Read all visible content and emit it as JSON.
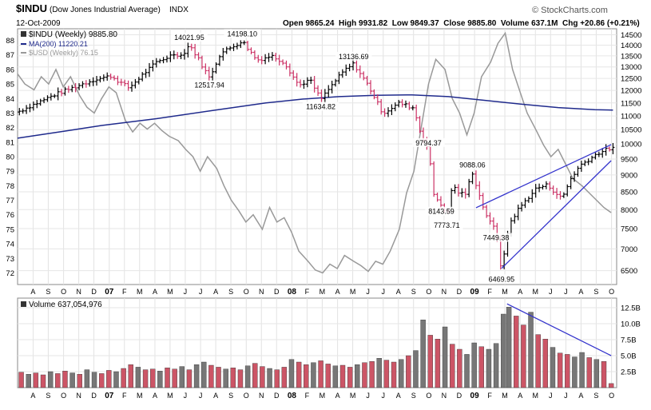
{
  "header": {
    "symbol": "$INDU",
    "name": "(Dow Jones Industrial Average)",
    "exchange": "INDX",
    "date": "12-Oct-2009",
    "ohlc": "Open 9865.24  High 9931.82  Low 9849.37  Close 9885.80  Volume 637.1M  Chg +20.86 (+0.21%)",
    "brand": "© StockCharts.com",
    "up_arrow": "▲"
  },
  "legend": {
    "price": "$INDU (Weekly) 9885.80",
    "ma": "MA(200) 11220.21",
    "usd": "$USD (Weekly) 76.15",
    "volume": "Volume 637,054,976"
  },
  "chart_data": {
    "type": "line",
    "colors": {
      "up": "#000000",
      "down": "#cc3366",
      "ma": "#1f2a8c",
      "usd": "#999999",
      "trend": "#3333cc",
      "vol_up": "#777777",
      "vol_down": "#cc5566"
    },
    "x_axis": {
      "range": [
        2006.54,
        2009.82
      ],
      "ticks": [
        {
          "label": "A",
          "x": 2006.625
        },
        {
          "label": "S",
          "x": 2006.708
        },
        {
          "label": "O",
          "x": 2006.792
        },
        {
          "label": "N",
          "x": 2006.875
        },
        {
          "label": "D",
          "x": 2006.958
        },
        {
          "label": "07",
          "x": 2007.042
        },
        {
          "label": "F",
          "x": 2007.125
        },
        {
          "label": "M",
          "x": 2007.208
        },
        {
          "label": "A",
          "x": 2007.292
        },
        {
          "label": "M",
          "x": 2007.375
        },
        {
          "label": "J",
          "x": 2007.458
        },
        {
          "label": "J",
          "x": 2007.542
        },
        {
          "label": "A",
          "x": 2007.625
        },
        {
          "label": "S",
          "x": 2007.708
        },
        {
          "label": "O",
          "x": 2007.792
        },
        {
          "label": "N",
          "x": 2007.875
        },
        {
          "label": "D",
          "x": 2007.958
        },
        {
          "label": "08",
          "x": 2008.042
        },
        {
          "label": "F",
          "x": 2008.125
        },
        {
          "label": "M",
          "x": 2008.208
        },
        {
          "label": "A",
          "x": 2008.292
        },
        {
          "label": "M",
          "x": 2008.375
        },
        {
          "label": "J",
          "x": 2008.458
        },
        {
          "label": "J",
          "x": 2008.542
        },
        {
          "label": "A",
          "x": 2008.625
        },
        {
          "label": "S",
          "x": 2008.708
        },
        {
          "label": "O",
          "x": 2008.792
        },
        {
          "label": "N",
          "x": 2008.875
        },
        {
          "label": "D",
          "x": 2008.958
        },
        {
          "label": "09",
          "x": 2009.042
        },
        {
          "label": "F",
          "x": 2009.125
        },
        {
          "label": "M",
          "x": 2009.208
        },
        {
          "label": "A",
          "x": 2009.292
        },
        {
          "label": "M",
          "x": 2009.375
        },
        {
          "label": "J",
          "x": 2009.458
        },
        {
          "label": "J",
          "x": 2009.542
        },
        {
          "label": "A",
          "x": 2009.625
        },
        {
          "label": "S",
          "x": 2009.708
        },
        {
          "label": "O",
          "x": 2009.792
        }
      ]
    },
    "price_axis": {
      "ticks": [
        {
          "label": "14500",
          "v": 14500
        },
        {
          "label": "14000",
          "v": 14000
        },
        {
          "label": "13500",
          "v": 13500
        },
        {
          "label": "13000",
          "v": 13000
        },
        {
          "label": "12500",
          "v": 12500
        },
        {
          "label": "12000",
          "v": 12000
        },
        {
          "label": "11500",
          "v": 11500
        },
        {
          "label": "11000",
          "v": 11000
        },
        {
          "label": "10500",
          "v": 10500
        },
        {
          "label": "10000",
          "v": 10000
        },
        {
          "label": "9500",
          "v": 9500
        },
        {
          "label": "9000",
          "v": 9000
        },
        {
          "label": "8500",
          "v": 8500
        },
        {
          "label": "8000",
          "v": 8000
        },
        {
          "label": "7500",
          "v": 7500
        },
        {
          "label": "7000",
          "v": 7000
        },
        {
          "label": "6500",
          "v": 6500
        }
      ]
    },
    "usd_axis": {
      "ticks": [
        {
          "label": "88",
          "v": 88
        },
        {
          "label": "87",
          "v": 87
        },
        {
          "label": "86",
          "v": 86
        },
        {
          "label": "85",
          "v": 85
        },
        {
          "label": "84",
          "v": 84
        },
        {
          "label": "83",
          "v": 83
        },
        {
          "label": "82",
          "v": 82
        },
        {
          "label": "81",
          "v": 81
        },
        {
          "label": "80",
          "v": 80
        },
        {
          "label": "79",
          "v": 79
        },
        {
          "label": "78",
          "v": 78
        },
        {
          "label": "77",
          "v": 77
        },
        {
          "label": "76",
          "v": 76
        },
        {
          "label": "75",
          "v": 75
        },
        {
          "label": "74",
          "v": 74
        },
        {
          "label": "73",
          "v": 73
        },
        {
          "label": "72",
          "v": 72
        }
      ]
    },
    "volume_axis": {
      "ticks": [
        {
          "label": "12.5B",
          "v": 12.5
        },
        {
          "label": "10.0B",
          "v": 10.0
        },
        {
          "label": "7.5B",
          "v": 7.5
        },
        {
          "label": "5.0B",
          "v": 5.0
        },
        {
          "label": "2.5B",
          "v": 2.5
        }
      ]
    },
    "price_keypoints": [
      [
        2006.54,
        11150
      ],
      [
        2006.75,
        11850
      ],
      [
        2006.96,
        12450
      ],
      [
        2007.05,
        12600
      ],
      [
        2007.15,
        12100
      ],
      [
        2007.23,
        12700
      ],
      [
        2007.3,
        13200
      ],
      [
        2007.4,
        13600
      ],
      [
        2007.44,
        13500
      ],
      [
        2007.48,
        14021.95
      ],
      [
        2007.52,
        13500
      ],
      [
        2007.59,
        12517.94
      ],
      [
        2007.65,
        13600
      ],
      [
        2007.77,
        14198.1
      ],
      [
        2007.85,
        13300
      ],
      [
        2007.93,
        13500
      ],
      [
        2008.0,
        13200
      ],
      [
        2008.08,
        12200
      ],
      [
        2008.14,
        12450
      ],
      [
        2008.2,
        11634.82
      ],
      [
        2008.28,
        12400
      ],
      [
        2008.33,
        12850
      ],
      [
        2008.38,
        13136.69
      ],
      [
        2008.46,
        12200
      ],
      [
        2008.54,
        11100
      ],
      [
        2008.63,
        11500
      ],
      [
        2008.71,
        11300
      ],
      [
        2008.74,
        10500
      ],
      [
        2008.79,
        9794.37
      ],
      [
        2008.82,
        8400
      ],
      [
        2008.86,
        8143.59
      ],
      [
        2008.89,
        7773.71
      ],
      [
        2008.92,
        8700
      ],
      [
        2008.95,
        8500
      ],
      [
        2008.99,
        8400
      ],
      [
        2009.03,
        9088.06
      ],
      [
        2009.08,
        8200
      ],
      [
        2009.12,
        7700
      ],
      [
        2009.16,
        7449.38
      ],
      [
        2009.19,
        6469.95
      ],
      [
        2009.23,
        7600
      ],
      [
        2009.28,
        8000
      ],
      [
        2009.33,
        8300
      ],
      [
        2009.38,
        8600
      ],
      [
        2009.44,
        8700
      ],
      [
        2009.48,
        8500
      ],
      [
        2009.52,
        8300
      ],
      [
        2009.57,
        8900
      ],
      [
        2009.62,
        9300
      ],
      [
        2009.67,
        9500
      ],
      [
        2009.72,
        9700
      ],
      [
        2009.76,
        9800
      ],
      [
        2009.8,
        9885.8
      ]
    ],
    "price_labels": [
      {
        "text": "14021.95",
        "x": 2007.48,
        "v": 14021.95,
        "pos": "above"
      },
      {
        "text": "14198.10",
        "x": 2007.77,
        "v": 14198.1,
        "pos": "above"
      },
      {
        "text": "12517.94",
        "x": 2007.59,
        "v": 12517.94,
        "pos": "below"
      },
      {
        "text": "13136.69",
        "x": 2008.38,
        "v": 13136.69,
        "pos": "above"
      },
      {
        "text": "11634.82",
        "x": 2008.2,
        "v": 11634.82,
        "pos": "below"
      },
      {
        "text": "9794.37",
        "x": 2008.79,
        "v": 9794.37,
        "pos": "above"
      },
      {
        "text": "9088.06",
        "x": 2009.03,
        "v": 9088.06,
        "pos": "above"
      },
      {
        "text": "8143.59",
        "x": 2008.86,
        "v": 8143.59,
        "pos": "below"
      },
      {
        "text": "7773.71",
        "x": 2008.89,
        "v": 7773.71,
        "pos": "below"
      },
      {
        "text": "7449.38",
        "x": 2009.16,
        "v": 7449.38,
        "pos": "below"
      },
      {
        "text": "6469.95",
        "x": 2009.19,
        "v": 6469.95,
        "pos": "below"
      }
    ],
    "ma200": [
      [
        2006.54,
        10200
      ],
      [
        2006.8,
        10450
      ],
      [
        2007.0,
        10650
      ],
      [
        2007.3,
        10900
      ],
      [
        2007.6,
        11200
      ],
      [
        2007.9,
        11500
      ],
      [
        2008.1,
        11650
      ],
      [
        2008.3,
        11750
      ],
      [
        2008.5,
        11800
      ],
      [
        2008.7,
        11820
      ],
      [
        2008.9,
        11750
      ],
      [
        2009.1,
        11600
      ],
      [
        2009.3,
        11450
      ],
      [
        2009.5,
        11320
      ],
      [
        2009.7,
        11240
      ],
      [
        2009.8,
        11220.21
      ]
    ],
    "usd_series": [
      [
        2006.54,
        85.7
      ],
      [
        2006.58,
        85.0
      ],
      [
        2006.63,
        84.6
      ],
      [
        2006.67,
        85.5
      ],
      [
        2006.71,
        85.0
      ],
      [
        2006.75,
        86.0
      ],
      [
        2006.79,
        84.8
      ],
      [
        2006.83,
        85.5
      ],
      [
        2006.88,
        84.2
      ],
      [
        2006.92,
        83.4
      ],
      [
        2006.96,
        83.0
      ],
      [
        2007.0,
        84.0
      ],
      [
        2007.04,
        84.8
      ],
      [
        2007.08,
        84.4
      ],
      [
        2007.13,
        82.5
      ],
      [
        2007.17,
        81.7
      ],
      [
        2007.21,
        82.3
      ],
      [
        2007.25,
        81.9
      ],
      [
        2007.29,
        82.3
      ],
      [
        2007.33,
        81.8
      ],
      [
        2007.37,
        81.4
      ],
      [
        2007.42,
        81.1
      ],
      [
        2007.46,
        80.5
      ],
      [
        2007.5,
        80.0
      ],
      [
        2007.54,
        79.0
      ],
      [
        2007.58,
        80.0
      ],
      [
        2007.63,
        79.2
      ],
      [
        2007.67,
        78.0
      ],
      [
        2007.71,
        77.0
      ],
      [
        2007.75,
        76.3
      ],
      [
        2007.79,
        75.5
      ],
      [
        2007.83,
        76.0
      ],
      [
        2007.88,
        75.0
      ],
      [
        2007.92,
        76.5
      ],
      [
        2007.96,
        75.5
      ],
      [
        2008.0,
        75.8
      ],
      [
        2008.04,
        74.8
      ],
      [
        2008.08,
        73.5
      ],
      [
        2008.13,
        72.8
      ],
      [
        2008.17,
        72.2
      ],
      [
        2008.21,
        72.0
      ],
      [
        2008.25,
        72.6
      ],
      [
        2008.29,
        72.3
      ],
      [
        2008.33,
        73.2
      ],
      [
        2008.38,
        72.8
      ],
      [
        2008.42,
        72.5
      ],
      [
        2008.46,
        72.1
      ],
      [
        2008.5,
        72.8
      ],
      [
        2008.54,
        72.6
      ],
      [
        2008.58,
        73.5
      ],
      [
        2008.63,
        75.0
      ],
      [
        2008.67,
        77.5
      ],
      [
        2008.71,
        79.0
      ],
      [
        2008.75,
        82.0
      ],
      [
        2008.79,
        85.0
      ],
      [
        2008.83,
        86.7
      ],
      [
        2008.88,
        86.0
      ],
      [
        2008.92,
        84.0
      ],
      [
        2008.96,
        83.0
      ],
      [
        2009.0,
        81.5
      ],
      [
        2009.04,
        83.0
      ],
      [
        2009.08,
        85.5
      ],
      [
        2009.13,
        86.5
      ],
      [
        2009.17,
        87.8
      ],
      [
        2009.21,
        88.5
      ],
      [
        2009.25,
        86.0
      ],
      [
        2009.29,
        84.5
      ],
      [
        2009.33,
        83.0
      ],
      [
        2009.38,
        81.8
      ],
      [
        2009.42,
        80.8
      ],
      [
        2009.46,
        80.0
      ],
      [
        2009.5,
        80.5
      ],
      [
        2009.54,
        79.5
      ],
      [
        2009.58,
        78.5
      ],
      [
        2009.63,
        78.0
      ],
      [
        2009.67,
        77.5
      ],
      [
        2009.71,
        77.0
      ],
      [
        2009.75,
        76.5
      ],
      [
        2009.79,
        76.15
      ]
    ],
    "trendlines": [
      {
        "from": [
          2009.05,
          8050
        ],
        "to": [
          2009.79,
          9980
        ]
      },
      {
        "from": [
          2009.19,
          6550
        ],
        "to": [
          2009.79,
          9450
        ]
      },
      {
        "from": [
          2009.22,
          13.1
        ],
        "to": [
          2009.79,
          5.0
        ],
        "panel": "volume"
      }
    ],
    "volume": [
      [
        2006.56,
        2.4
      ],
      [
        2006.6,
        2.1
      ],
      [
        2006.64,
        2.3
      ],
      [
        2006.68,
        2.0
      ],
      [
        2006.72,
        2.5
      ],
      [
        2006.76,
        2.2
      ],
      [
        2006.8,
        2.6
      ],
      [
        2006.84,
        2.3
      ],
      [
        2006.88,
        2.1
      ],
      [
        2006.92,
        2.8
      ],
      [
        2006.96,
        2.4
      ],
      [
        2007.0,
        2.2
      ],
      [
        2007.04,
        2.7
      ],
      [
        2007.08,
        2.5
      ],
      [
        2007.12,
        3.0
      ],
      [
        2007.16,
        3.6
      ],
      [
        2007.2,
        3.2
      ],
      [
        2007.24,
        2.8
      ],
      [
        2007.28,
        2.9
      ],
      [
        2007.32,
        2.6
      ],
      [
        2007.36,
        3.1
      ],
      [
        2007.4,
        2.9
      ],
      [
        2007.44,
        3.3
      ],
      [
        2007.48,
        2.8
      ],
      [
        2007.52,
        3.6
      ],
      [
        2007.56,
        4.0
      ],
      [
        2007.6,
        3.5
      ],
      [
        2007.64,
        3.2
      ],
      [
        2007.68,
        2.9
      ],
      [
        2007.72,
        3.1
      ],
      [
        2007.76,
        2.8
      ],
      [
        2007.8,
        3.4
      ],
      [
        2007.84,
        3.8
      ],
      [
        2007.88,
        3.3
      ],
      [
        2007.92,
        3.0
      ],
      [
        2007.96,
        2.8
      ],
      [
        2008.0,
        3.2
      ],
      [
        2008.04,
        4.4
      ],
      [
        2008.08,
        4.0
      ],
      [
        2008.12,
        3.6
      ],
      [
        2008.16,
        3.9
      ],
      [
        2008.2,
        4.2
      ],
      [
        2008.24,
        3.7
      ],
      [
        2008.28,
        3.4
      ],
      [
        2008.32,
        3.5
      ],
      [
        2008.36,
        3.2
      ],
      [
        2008.4,
        3.6
      ],
      [
        2008.44,
        3.9
      ],
      [
        2008.48,
        4.1
      ],
      [
        2008.52,
        4.6
      ],
      [
        2008.56,
        4.3
      ],
      [
        2008.6,
        4.0
      ],
      [
        2008.64,
        4.4
      ],
      [
        2008.68,
        5.0
      ],
      [
        2008.72,
        5.8
      ],
      [
        2008.76,
        10.6
      ],
      [
        2008.8,
        8.2
      ],
      [
        2008.84,
        7.6
      ],
      [
        2008.88,
        9.5
      ],
      [
        2008.92,
        6.8
      ],
      [
        2008.96,
        6.0
      ],
      [
        2009.0,
        5.2
      ],
      [
        2009.04,
        7.0
      ],
      [
        2009.08,
        6.4
      ],
      [
        2009.12,
        6.0
      ],
      [
        2009.16,
        6.9
      ],
      [
        2009.2,
        11.5
      ],
      [
        2009.23,
        12.6
      ],
      [
        2009.27,
        11.2
      ],
      [
        2009.31,
        9.8
      ],
      [
        2009.35,
        11.8
      ],
      [
        2009.39,
        8.3
      ],
      [
        2009.43,
        7.6
      ],
      [
        2009.47,
        6.3
      ],
      [
        2009.51,
        5.4
      ],
      [
        2009.55,
        5.2
      ],
      [
        2009.59,
        4.8
      ],
      [
        2009.63,
        5.5
      ],
      [
        2009.67,
        4.7
      ],
      [
        2009.71,
        4.4
      ],
      [
        2009.75,
        4.1
      ],
      [
        2009.79,
        0.64
      ]
    ]
  }
}
